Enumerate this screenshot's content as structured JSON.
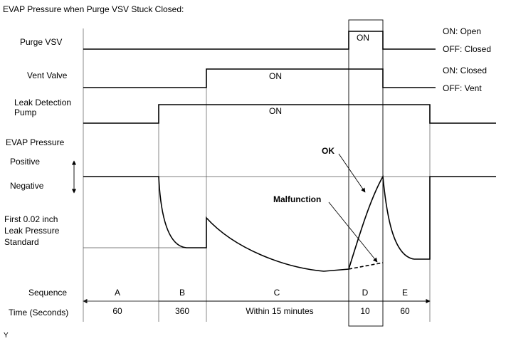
{
  "title": "EVAP Pressure when Purge VSV Stuck Closed:",
  "signals": {
    "purge_vsv": {
      "label": "Purge VSV",
      "on_text": "ON",
      "state_on": "ON: Open",
      "state_off": "OFF: Closed"
    },
    "vent_valve": {
      "label": "Vent Valve",
      "on_text": "ON",
      "state_on": "ON: Closed",
      "state_off": "OFF: Vent"
    },
    "leak_pump": {
      "label_line1": "Leak Detection",
      "label_line2": "Pump",
      "on_text": "ON"
    },
    "evap_pressure": {
      "label": "EVAP Pressure",
      "positive": "Positive",
      "negative": "Negative"
    },
    "leak_standard": {
      "line1": "First 0.02 inch",
      "line2": "Leak Pressure",
      "line3": "Standard"
    }
  },
  "annotations": {
    "ok": "OK",
    "malfunction": "Malfunction"
  },
  "sequence": {
    "label": "Sequence",
    "time_label": "Time (Seconds)",
    "steps": [
      {
        "name": "A",
        "time": "60"
      },
      {
        "name": "B",
        "time": "360"
      },
      {
        "name": "C",
        "time": "Within 15 minutes"
      },
      {
        "name": "D",
        "time": "10"
      },
      {
        "name": "E",
        "time": "60"
      }
    ]
  },
  "footer_mark": "Y"
}
